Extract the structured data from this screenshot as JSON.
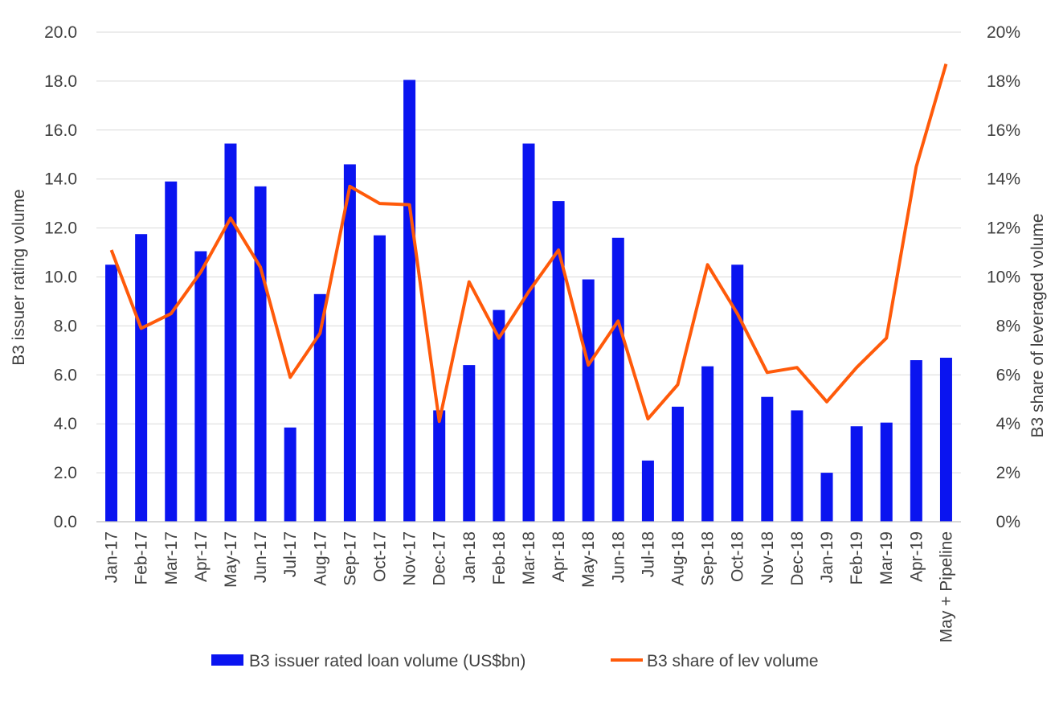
{
  "chart_data": {
    "type": "bar",
    "categories": [
      "Jan-17",
      "Feb-17",
      "Mar-17",
      "Apr-17",
      "May-17",
      "Jun-17",
      "Jul-17",
      "Aug-17",
      "Sep-17",
      "Oct-17",
      "Nov-17",
      "Dec-17",
      "Jan-18",
      "Feb-18",
      "Mar-18",
      "Apr-18",
      "May-18",
      "Jun-18",
      "Jul-18",
      "Aug-18",
      "Sep-18",
      "Oct-18",
      "Nov-18",
      "Dec-18",
      "Jan-19",
      "Feb-19",
      "Mar-19",
      "Apr-19",
      "May + Pipeline"
    ],
    "series": [
      {
        "name": "B3 issuer rated loan volume (US$bn)",
        "type": "bar",
        "axis": "left",
        "color": "#0a14f0",
        "values": [
          10.5,
          11.75,
          13.9,
          11.05,
          15.45,
          13.7,
          3.85,
          9.3,
          14.6,
          11.7,
          18.05,
          4.55,
          6.4,
          8.65,
          15.45,
          13.1,
          9.9,
          11.6,
          2.5,
          4.7,
          6.35,
          10.5,
          5.1,
          4.55,
          2.0,
          3.9,
          4.05,
          6.6,
          6.7
        ]
      },
      {
        "name": "B3 share of lev volume",
        "type": "line",
        "axis": "right",
        "color": "#ff5a0a",
        "values": [
          11.1,
          7.9,
          8.5,
          10.2,
          12.4,
          10.4,
          5.9,
          7.7,
          13.7,
          13.0,
          12.95,
          4.1,
          9.8,
          7.5,
          9.4,
          11.1,
          6.4,
          8.2,
          4.2,
          5.6,
          10.5,
          8.5,
          6.1,
          6.3,
          4.9,
          6.3,
          7.5,
          14.5,
          18.7
        ]
      }
    ],
    "ylabel": "B3 issuer rating volume",
    "y2label": "B3 share of leveraged volume",
    "ylim": [
      0,
      20
    ],
    "y2lim": [
      0,
      20
    ],
    "yticks": [
      "0.0",
      "2.0",
      "4.0",
      "6.0",
      "8.0",
      "10.0",
      "12.0",
      "14.0",
      "16.0",
      "18.0",
      "20.0"
    ],
    "y2ticks": [
      "0%",
      "2%",
      "4%",
      "6%",
      "8%",
      "10%",
      "12%",
      "14%",
      "16%",
      "18%",
      "20%"
    ],
    "grid": true,
    "legend_position": "bottom"
  }
}
